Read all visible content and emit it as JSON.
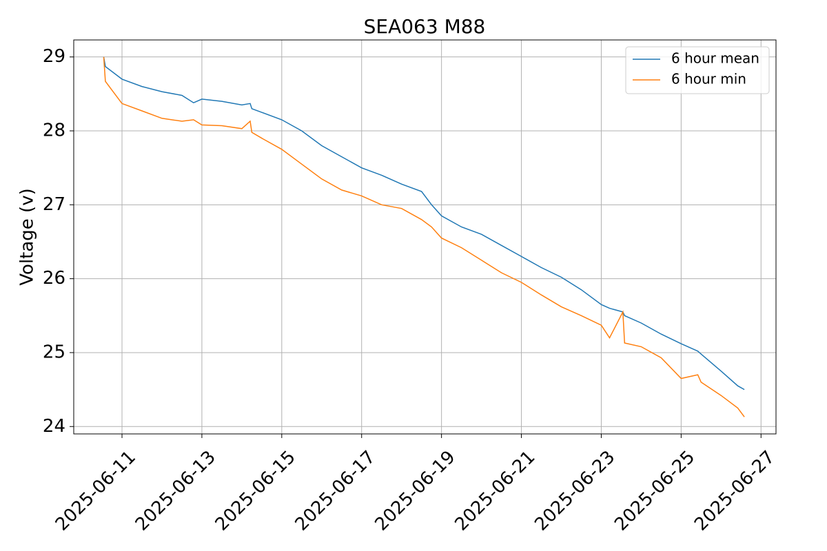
{
  "chart_data": {
    "type": "line",
    "title": "SEA063 M88",
    "ylabel": "Voltage (v)",
    "x": [
      "2025-06-10T13:00",
      "2025-06-10T14:00",
      "2025-06-11T00:00",
      "2025-06-11T12:00",
      "2025-06-12T00:00",
      "2025-06-12T12:00",
      "2025-06-12T19:00",
      "2025-06-13T00:00",
      "2025-06-13T12:00",
      "2025-06-14T00:00",
      "2025-06-14T05:00",
      "2025-06-14T06:00",
      "2025-06-14T12:00",
      "2025-06-15T00:00",
      "2025-06-15T12:00",
      "2025-06-16T00:00",
      "2025-06-16T12:00",
      "2025-06-17T00:00",
      "2025-06-17T12:00",
      "2025-06-18T00:00",
      "2025-06-18T12:00",
      "2025-06-18T18:00",
      "2025-06-19T00:00",
      "2025-06-19T12:00",
      "2025-06-20T00:00",
      "2025-06-20T12:00",
      "2025-06-21T00:00",
      "2025-06-21T12:00",
      "2025-06-22T00:00",
      "2025-06-22T12:00",
      "2025-06-23T00:00",
      "2025-06-23T05:00",
      "2025-06-23T13:00",
      "2025-06-23T14:00",
      "2025-06-24T00:00",
      "2025-06-24T12:00",
      "2025-06-25T00:00",
      "2025-06-25T10:00",
      "2025-06-25T12:00",
      "2025-06-26T00:00",
      "2025-06-26T10:00",
      "2025-06-26T14:00"
    ],
    "series": [
      {
        "name": "6 hour mean",
        "color": "#1f77b4",
        "values": [
          29.0,
          28.87,
          28.7,
          28.6,
          28.53,
          28.48,
          28.38,
          28.43,
          28.4,
          28.35,
          28.37,
          28.3,
          28.25,
          28.15,
          28.0,
          27.8,
          27.65,
          27.5,
          27.4,
          27.28,
          27.18,
          27.0,
          26.85,
          26.7,
          26.6,
          26.45,
          26.3,
          26.15,
          26.02,
          25.85,
          25.65,
          25.6,
          25.55,
          25.5,
          25.4,
          25.25,
          25.12,
          25.02,
          24.98,
          24.75,
          24.55,
          24.5
        ]
      },
      {
        "name": "6 hour min",
        "color": "#ff7f0e",
        "values": [
          29.0,
          28.67,
          28.37,
          28.27,
          28.17,
          28.13,
          28.15,
          28.08,
          28.07,
          28.03,
          28.13,
          27.98,
          27.9,
          27.75,
          27.55,
          27.35,
          27.2,
          27.12,
          27.0,
          26.95,
          26.8,
          26.7,
          26.55,
          26.42,
          26.25,
          26.08,
          25.95,
          25.78,
          25.62,
          25.5,
          25.37,
          25.2,
          25.55,
          25.13,
          25.08,
          24.93,
          24.65,
          24.7,
          24.6,
          24.42,
          24.25,
          24.13
        ]
      }
    ],
    "xlim": [
      "2025-06-09T19:00",
      "2025-06-27T09:00"
    ],
    "xticks": [
      "2025-06-11",
      "2025-06-13",
      "2025-06-15",
      "2025-06-17",
      "2025-06-19",
      "2025-06-21",
      "2025-06-23",
      "2025-06-25",
      "2025-06-27"
    ],
    "ylim": [
      23.9,
      29.23
    ],
    "yticks": [
      24,
      25,
      26,
      27,
      28,
      29
    ],
    "grid": true,
    "legend": "upper right"
  }
}
